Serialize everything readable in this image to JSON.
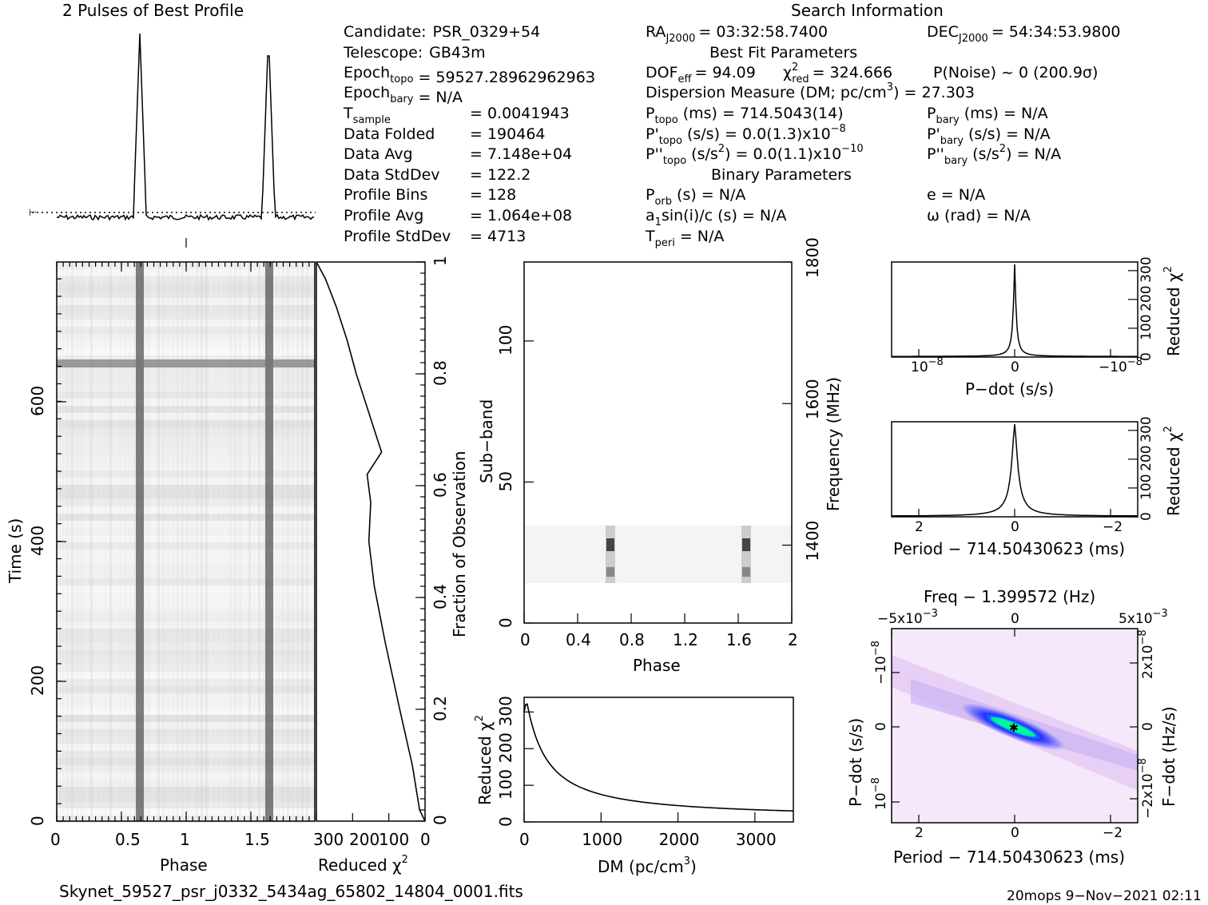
{
  "header": {
    "profile_title": "2 Pulses of Best Profile",
    "search_title": "Search Information",
    "best_fit_title": "Best Fit Parameters",
    "binary_title": "Binary Parameters"
  },
  "info_left": [
    {
      "k": "Candidate:",
      "v": "PSR_0329+54"
    },
    {
      "k": "Telescope:",
      "v": "GB43m"
    },
    {
      "k": "Epoch",
      "s": "topo",
      "v": "= 59527.2896296296З"
    },
    {
      "k": "Epoch",
      "s": "bary",
      "v": "= N/A"
    },
    {
      "k": "T",
      "s": "sample",
      "v": "=   0.0041943"
    },
    {
      "k": "Data Folded",
      "v": "=   190464"
    },
    {
      "k": "Data Avg",
      "v": "=   7.148e+04"
    },
    {
      "k": "Data StdDev",
      "v": "=   122.2"
    },
    {
      "k": "Profile Bins",
      "v": "=   128"
    },
    {
      "k": "Profile Avg",
      "v": "=   1.064e+08"
    },
    {
      "k": "Profile StdDev",
      "v": "=   4713"
    }
  ],
  "info_mid": {
    "ra": "RA",
    "ra_sub": "J2000",
    "ra_val": "= 03:32:58.7400",
    "dec": "DEC",
    "dec_sub": "J2000",
    "dec_val": "= 54:34:53.9800",
    "dof": "DOF",
    "dof_sub": "eff",
    "dof_val": "= 94.09",
    "chi": "χ",
    "chi_sub": "red",
    "chi_val": "= 324.666",
    "pnoise": "P(Noise) ~ 0    (200.9σ)",
    "dm_line": "Dispersion Measure (DM; pc/cm",
    "dm_val": ") = 27.303",
    "ptopo": "P",
    "ptopo_sub": "topo",
    "ptopo_val": "(ms) =  714.5043(14)",
    "pdtopo": "P'",
    "pdtopo_sub": "topo",
    "pdtopo_val": "(s/s) = 0.0(1.3)x10",
    "pdtopo_exp": "−8",
    "pddtopo": "P''",
    "pddtopo_sub": "topo",
    "pddtopo_val": "(s/s",
    "pddtopo_val2": ") = 0.0(1.1)x10",
    "pddtopo_exp": "−10",
    "porb": "P",
    "porb_sub": "orb",
    "porb_val": "(s) = N/A",
    "asini": "a",
    "asini_sub": "1",
    "asini_val": "sin(i)/c (s) = N/A",
    "tperi": "T",
    "tperi_sub": "peri",
    "tperi_val": "= N/A"
  },
  "info_right": {
    "pbary": "P",
    "pbary_sub": "bary",
    "pbary_val": "(ms) = N/A",
    "pdbary": "P'",
    "pdbary_sub": "bary",
    "pdbary_val": "(s/s) = N/A",
    "pddbary": "P''",
    "pddbary_sub": "bary",
    "pddbary_val": "(s/s",
    "pddbary_val2": ") = N/A",
    "ecc": "e = N/A",
    "omega": "ω (rad) = N/A"
  },
  "labels": {
    "time_axis": "Time (s)",
    "phase": "Phase",
    "reduced_chi": "Reduced χ",
    "fraction_obs": "Fraction of Observation",
    "sub_band": "Sub−band",
    "frequency": "Frequency (MHz)",
    "dm_axis": "DM (pc/cm",
    "pdot_axis": "P−dot (s/s)",
    "period_axis": "Period − 714.50430623 (ms)",
    "freq_title": "Freq − 1.399572 (Hz)",
    "pdot_left": "P−dot (s/s)",
    "fdot_right": "F−dot (Hz/s)",
    "sup2": "2",
    "sup3": "3"
  },
  "ticks": {
    "time_y": [
      "0",
      "200",
      "400",
      "600"
    ],
    "phase_x": [
      "0",
      "0.5",
      "1",
      "1.5"
    ],
    "chi_x": [
      "300",
      "200",
      "100",
      "0"
    ],
    "fraction_y": [
      "0",
      "0.2",
      "0.4",
      "0.6",
      "0.8",
      "1"
    ],
    "subband_y": [
      "0",
      "50",
      "100"
    ],
    "freq_y": [
      "1400",
      "1600",
      "1800"
    ],
    "phase2_x": [
      "0",
      "0.4",
      "0.8",
      "1.2",
      "1.6",
      "2"
    ],
    "dm_x": [
      "0",
      "1000",
      "2000",
      "3000"
    ],
    "chi_y_dm": [
      "0",
      "100",
      "200",
      "300"
    ],
    "chi_y_small": [
      "0",
      "100",
      "200",
      "300"
    ],
    "pdot_x": [
      "10",
      "0",
      "−10"
    ],
    "pdot_x_exp": "−8",
    "period_x": [
      "2",
      "0",
      "−2"
    ],
    "freq_top_x": [
      "−5x10",
      "0",
      "5x10"
    ],
    "freq_top_exp": "−3",
    "pdot_left_y": [
      "−10",
      "0",
      "10"
    ],
    "pdot_left_exp": "−8",
    "fdot_right_y": [
      "2x10",
      "0",
      "−2x10"
    ],
    "fdot_right_exp": "−8"
  },
  "footer": {
    "filename": "Skynet_59527_psr_j0332_5434ag_65802_14804_0001.fits",
    "stamp": "20mops   9−Nov−2021 02:11"
  },
  "chart_data": [
    {
      "type": "line",
      "title": "2 Pulses of Best Profile",
      "x": "phase 0–2",
      "series": [
        {
          "values_description_peaks_at_phase": [
            0.65,
            1.65
          ]
        }
      ]
    },
    {
      "type": "heatmap",
      "xlabel": "Phase",
      "ylabel": "Time (s)",
      "xlim": [
        0,
        2
      ],
      "ylim": [
        0,
        800
      ],
      "pulse_phases": [
        0.65,
        1.65
      ]
    },
    {
      "type": "line",
      "xlabel": "Reduced χ2",
      "ylabel": "Fraction of Observation",
      "xlim": [
        300,
        0
      ],
      "ylim": [
        0,
        1
      ],
      "points": [
        [
          0,
          0
        ],
        [
          15,
          0.02
        ],
        [
          35,
          0.1
        ],
        [
          70,
          0.2
        ],
        [
          110,
          0.32
        ],
        [
          140,
          0.42
        ],
        [
          155,
          0.5
        ],
        [
          150,
          0.57
        ],
        [
          160,
          0.62
        ],
        [
          120,
          0.66
        ],
        [
          140,
          0.7
        ],
        [
          160,
          0.74
        ],
        [
          190,
          0.8
        ],
        [
          215,
          0.86
        ],
        [
          245,
          0.92
        ],
        [
          275,
          0.97
        ],
        [
          300,
          1.0
        ]
      ]
    },
    {
      "type": "heatmap",
      "xlabel": "Phase",
      "ylabel": "Sub−band",
      "xlim": [
        0,
        2
      ],
      "ylim": [
        0,
        128
      ],
      "active_subbands": [
        15,
        35
      ]
    },
    {
      "type": "line",
      "xlabel": "DM (pc/cm3)",
      "ylabel": "Reduced χ2",
      "xlim": [
        0,
        3500
      ],
      "ylim": [
        0,
        340
      ],
      "points": [
        [
          0,
          300
        ],
        [
          27,
          325
        ],
        [
          100,
          270
        ],
        [
          200,
          180
        ],
        [
          400,
          110
        ],
        [
          700,
          70
        ],
        [
          1000,
          50
        ],
        [
          1500,
          35
        ],
        [
          2000,
          25
        ],
        [
          2500,
          18
        ],
        [
          3000,
          12
        ],
        [
          3500,
          15
        ]
      ]
    },
    {
      "type": "line",
      "xlabel": "P−dot (s/s)",
      "ylabel": "Reduced χ2",
      "xlim": [
        1.5e-08,
        -1.5e-08
      ],
      "ylim": [
        0,
        330
      ],
      "peak": [
        0,
        325
      ]
    },
    {
      "type": "line",
      "xlabel": "Period − 714.50430623 (ms)",
      "ylabel": "Reduced χ2",
      "xlim": [
        2.5,
        -2.5
      ],
      "ylim": [
        0,
        330
      ],
      "peak": [
        0,
        325
      ]
    },
    {
      "type": "heatmap",
      "title": "Freq − 1.399572 (Hz)",
      "xlabel": "Period − 714.50430623 (ms)",
      "ylabel": "P−dot (s/s)",
      "xlim": [
        2.5,
        -2.5
      ],
      "ylim": [
        1.5e-08,
        -1.5e-08
      ],
      "best": [
        0,
        0
      ]
    }
  ]
}
